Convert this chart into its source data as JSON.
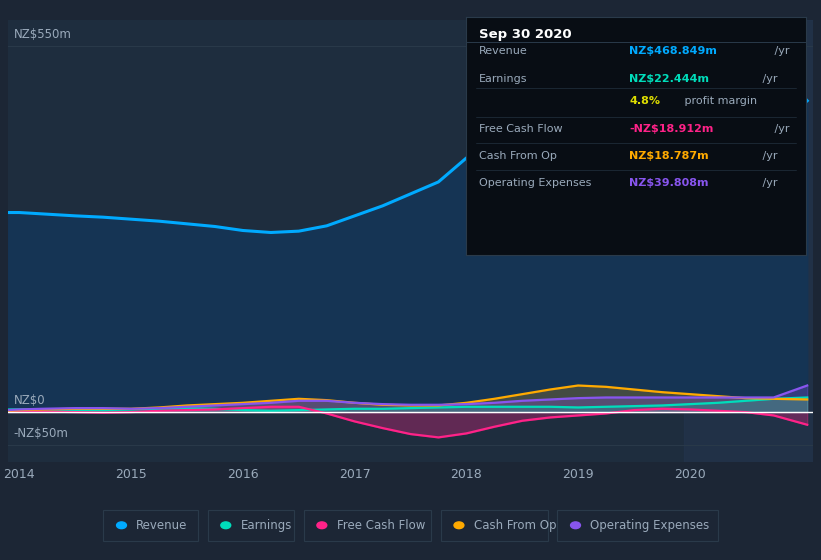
{
  "bg_color": "#1c2635",
  "plot_bg_color": "#1e2d3e",
  "grid_color": "#2a3a4a",
  "zero_line_color": "#ffffff",
  "text_color": "#9aaabb",
  "title_color": "#ffffff",
  "years": [
    2013.9,
    2014.0,
    2014.2,
    2014.5,
    2014.75,
    2015.0,
    2015.25,
    2015.5,
    2015.75,
    2016.0,
    2016.25,
    2016.5,
    2016.75,
    2017.0,
    2017.25,
    2017.5,
    2017.75,
    2018.0,
    2018.25,
    2018.5,
    2018.75,
    2019.0,
    2019.25,
    2019.5,
    2019.75,
    2020.0,
    2020.25,
    2020.5,
    2020.75,
    2021.05
  ],
  "revenue": [
    300,
    300,
    298,
    295,
    293,
    290,
    287,
    283,
    279,
    273,
    270,
    272,
    280,
    295,
    310,
    328,
    346,
    382,
    405,
    418,
    422,
    415,
    425,
    435,
    445,
    485,
    542,
    553,
    522,
    468
  ],
  "revenue_color": "#00aaff",
  "revenue_fill": "#153454",
  "earnings": [
    4,
    4,
    4,
    3,
    3,
    4,
    5,
    6,
    5,
    3,
    2,
    3,
    4,
    5,
    5,
    6,
    7,
    8,
    8,
    8,
    8,
    7,
    8,
    9,
    10,
    12,
    14,
    17,
    20,
    22
  ],
  "earnings_color": "#00ddbb",
  "free_cash_flow": [
    2,
    2,
    1,
    0,
    -1,
    0,
    2,
    3,
    4,
    6,
    8,
    8,
    -2,
    -14,
    -24,
    -33,
    -38,
    -32,
    -22,
    -13,
    -8,
    -5,
    -2,
    3,
    5,
    4,
    2,
    0,
    -5,
    -19
  ],
  "free_cash_flow_color": "#ff2288",
  "cash_from_op": [
    2,
    3,
    4,
    5,
    5,
    5,
    7,
    10,
    12,
    14,
    17,
    20,
    18,
    14,
    11,
    10,
    10,
    14,
    20,
    27,
    34,
    40,
    38,
    34,
    30,
    27,
    24,
    21,
    20,
    19
  ],
  "cash_from_op_color": "#ffaa00",
  "operating_expenses": [
    3,
    4,
    5,
    6,
    6,
    5,
    6,
    8,
    10,
    12,
    14,
    17,
    17,
    14,
    12,
    11,
    11,
    12,
    14,
    17,
    19,
    21,
    22,
    22,
    22,
    22,
    22,
    22,
    22,
    40
  ],
  "operating_expenses_color": "#8855ee",
  "ylim": [
    -75,
    590
  ],
  "ytick_vals": [
    -50,
    0,
    550
  ],
  "ytick_labels": [
    "-NZ$50m",
    "NZ$0",
    "NZ$550m"
  ],
  "xlim_start": 2013.9,
  "xlim_end": 2021.1,
  "xtick_vals": [
    2014,
    2015,
    2016,
    2017,
    2018,
    2019,
    2020
  ],
  "highlight_start": 2019.95,
  "highlight_color": "#243550",
  "highlight_alpha": 0.5,
  "tooltip_title": "Sep 30 2020",
  "tooltip_bg": "#080d14",
  "tooltip_border": "#2a3a4a",
  "tooltip_rows": [
    {
      "label": "Revenue",
      "value": "NZ$468.849m",
      "value_color": "#00aaff",
      "suffix": " /yr",
      "sep_after": true
    },
    {
      "label": "Earnings",
      "value": "NZ$22.444m",
      "value_color": "#00ddbb",
      "suffix": " /yr",
      "sep_after": false
    },
    {
      "label": "",
      "value": "4.8%",
      "value_color": "#dddd00",
      "suffix": " profit margin",
      "sep_after": true
    },
    {
      "label": "Free Cash Flow",
      "value": "-NZ$18.912m",
      "value_color": "#ff2288",
      "suffix": " /yr",
      "sep_after": true
    },
    {
      "label": "Cash From Op",
      "value": "NZ$18.787m",
      "value_color": "#ffaa00",
      "suffix": " /yr",
      "sep_after": true
    },
    {
      "label": "Operating Expenses",
      "value": "NZ$39.808m",
      "value_color": "#8855ee",
      "suffix": " /yr",
      "sep_after": false
    }
  ],
  "legend_items": [
    {
      "label": "Revenue",
      "color": "#00aaff"
    },
    {
      "label": "Earnings",
      "color": "#00ddbb"
    },
    {
      "label": "Free Cash Flow",
      "color": "#ff2288"
    },
    {
      "label": "Cash From Op",
      "color": "#ffaa00"
    },
    {
      "label": "Operating Expenses",
      "color": "#8855ee"
    }
  ]
}
